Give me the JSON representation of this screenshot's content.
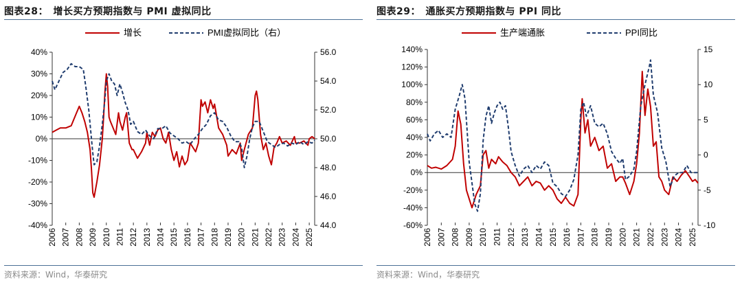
{
  "charts": [
    {
      "fig_title": "图表28：　增长买方预期指数与 PMI 虚拟同比",
      "source": "资料来源：Wind，华泰研究",
      "chart_data": {
        "type": "line",
        "x_unit": "year",
        "xlim": [
          2006,
          2025.4
        ],
        "x_ticks": [
          "2006",
          "2007",
          "2008",
          "2009",
          "2010",
          "2011",
          "2012",
          "2013",
          "2014",
          "2015",
          "2016",
          "2017",
          "2018",
          "2019",
          "2020",
          "2021",
          "2022",
          "2023",
          "2024",
          "2025"
        ],
        "y_left": {
          "lim": [
            -40,
            40
          ],
          "ticks": [
            -40,
            -30,
            -20,
            -10,
            0,
            10,
            20,
            30,
            40
          ],
          "tick_labels": [
            "-40%",
            "-30%",
            "-20%",
            "-10%",
            "0%",
            "10%",
            "20%",
            "30%",
            "40%"
          ]
        },
        "y_right": {
          "lim": [
            44,
            56
          ],
          "ticks": [
            44,
            46,
            48,
            50,
            52,
            54,
            56
          ],
          "tick_labels": [
            "44.0",
            "46.0",
            "48.0",
            "50.0",
            "52.0",
            "54.0",
            "56.0"
          ]
        },
        "grid": false,
        "legend": "top",
        "series": [
          {
            "name": "增长",
            "axis": "left",
            "color": "#c00000",
            "style": "solid",
            "x": [
              2006.0,
              2006.3,
              2006.6,
              2007.0,
              2007.4,
              2007.8,
              2008.0,
              2008.2,
              2008.4,
              2008.6,
              2008.8,
              2008.9,
              2009.0,
              2009.1,
              2009.3,
              2009.5,
              2009.7,
              2009.8,
              2009.9,
              2010.0,
              2010.1,
              2010.2,
              2010.3,
              2010.5,
              2010.7,
              2010.9,
              2011.0,
              2011.2,
              2011.4,
              2011.5,
              2011.7,
              2011.9,
              2012.0,
              2012.3,
              2012.6,
              2012.9,
              2013.0,
              2013.2,
              2013.4,
              2013.6,
              2013.8,
              2014.0,
              2014.2,
              2014.4,
              2014.6,
              2014.8,
              2015.0,
              2015.2,
              2015.4,
              2015.6,
              2015.8,
              2016.0,
              2016.2,
              2016.4,
              2016.6,
              2016.8,
              2017.0,
              2017.1,
              2017.3,
              2017.5,
              2017.7,
              2017.9,
              2018.0,
              2018.3,
              2018.6,
              2018.9,
              2019.0,
              2019.3,
              2019.6,
              2019.9,
              2020.0,
              2020.2,
              2020.5,
              2020.8,
              2021.0,
              2021.1,
              2021.2,
              2021.4,
              2021.6,
              2021.8,
              2022.0,
              2022.2,
              2022.4,
              2022.6,
              2022.8,
              2023.0,
              2023.3,
              2023.6,
              2023.9,
              2024.0,
              2024.3,
              2024.6,
              2024.9,
              2025.0,
              2025.2,
              2025.4
            ],
            "y": [
              3,
              4,
              5,
              5,
              6,
              12,
              15,
              12,
              8,
              3,
              -5,
              -14,
              -25,
              -27,
              -20,
              -12,
              0,
              10,
              22,
              30,
              24,
              10,
              8,
              5,
              2,
              12,
              8,
              4,
              10,
              12,
              -2,
              -5,
              -5,
              -9,
              -6,
              -2,
              3,
              -3,
              3,
              1,
              4,
              5,
              0,
              -2,
              3,
              -5,
              -10,
              -6,
              -13,
              -8,
              -12,
              -10,
              -2,
              -4,
              -6,
              -2,
              18,
              15,
              17,
              12,
              18,
              14,
              16,
              5,
              2,
              -3,
              -8,
              -5,
              -7,
              -2,
              -10,
              -5,
              2,
              5,
              20,
              22,
              18,
              2,
              -5,
              -2,
              -8,
              -12,
              -4,
              -2,
              1,
              -2,
              -1,
              -3,
              1,
              -2,
              -2,
              -1,
              -3,
              0,
              1,
              0
            ]
          },
          {
            "name": "PMI虚拟同比（右）",
            "axis": "right",
            "color": "#1f3c6e",
            "style": "dashed",
            "x": [
              2006.0,
              2006.2,
              2006.5,
              2006.8,
              2007.1,
              2007.4,
              2007.7,
              2008.0,
              2008.3,
              2008.5,
              2008.7,
              2008.9,
              2009.0,
              2009.1,
              2009.3,
              2009.5,
              2009.7,
              2009.9,
              2010.0,
              2010.2,
              2010.4,
              2010.6,
              2010.8,
              2011.0,
              2011.2,
              2011.4,
              2011.6,
              2011.8,
              2012.0,
              2012.3,
              2012.6,
              2012.9,
              2013.2,
              2013.5,
              2013.8,
              2014.1,
              2014.4,
              2014.7,
              2015.0,
              2015.3,
              2015.6,
              2015.9,
              2016.2,
              2016.5,
              2016.8,
              2017.1,
              2017.4,
              2017.7,
              2018.0,
              2018.3,
              2018.6,
              2018.9,
              2019.2,
              2019.5,
              2019.8,
              2020.0,
              2020.2,
              2020.4,
              2020.6,
              2020.8,
              2021.0,
              2021.3,
              2021.6,
              2021.9,
              2022.2,
              2022.5,
              2022.8,
              2023.1,
              2023.4,
              2023.7,
              2024.0,
              2024.3,
              2024.6,
              2024.9,
              2025.2,
              2025.4
            ],
            "y": [
              54.0,
              53.4,
              54.0,
              54.6,
              54.8,
              55.2,
              55.0,
              55.0,
              54.8,
              53.5,
              52.0,
              50.0,
              49.0,
              48.2,
              48.4,
              49.5,
              51.0,
              52.8,
              54.0,
              54.5,
              54.0,
              53.8,
              53.0,
              53.8,
              53.2,
              52.5,
              52.0,
              51.0,
              51.2,
              50.5,
              50.3,
              50.6,
              50.2,
              50.0,
              50.7,
              50.7,
              50.9,
              50.4,
              50.2,
              50.0,
              49.7,
              49.8,
              49.6,
              50.0,
              50.3,
              50.7,
              51.0,
              51.6,
              51.8,
              51.3,
              51.2,
              50.8,
              50.2,
              49.8,
              49.8,
              49.4,
              48.0,
              48.8,
              50.0,
              50.8,
              51.2,
              51.2,
              50.5,
              49.8,
              49.6,
              49.4,
              49.6,
              49.7,
              49.5,
              49.7,
              49.6,
              49.8,
              49.6,
              49.8,
              49.7,
              49.9
            ]
          }
        ]
      }
    },
    {
      "fig_title": "图表29：　通胀买方预期指数与 PPI 同比",
      "source": "资料来源：Wind，华泰研究",
      "chart_data": {
        "type": "line",
        "x_unit": "year",
        "xlim": [
          2006,
          2025.4
        ],
        "x_ticks": [
          "2006",
          "2007",
          "2008",
          "2009",
          "2010",
          "2011",
          "2012",
          "2013",
          "2014",
          "2015",
          "2016",
          "2017",
          "2018",
          "2019",
          "2020",
          "2021",
          "2022",
          "2023",
          "2024",
          "2025"
        ],
        "y_left": {
          "lim": [
            -60,
            140
          ],
          "ticks": [
            -60,
            -40,
            -20,
            0,
            20,
            40,
            60,
            80,
            100,
            120,
            140
          ],
          "tick_labels": [
            "-60%",
            "-40%",
            "-20%",
            "0%",
            "20%",
            "40%",
            "60%",
            "80%",
            "100%",
            "120%",
            "140%"
          ]
        },
        "y_right": {
          "lim": [
            -10,
            15
          ],
          "ticks": [
            -10,
            -5,
            0,
            5,
            10,
            15
          ],
          "tick_labels": [
            "-10",
            "-5",
            "0",
            "5",
            "10",
            "15"
          ]
        },
        "grid": false,
        "legend": "top",
        "series": [
          {
            "name": "生产端通胀",
            "axis": "left",
            "color": "#c00000",
            "style": "solid",
            "x": [
              2006.0,
              2006.3,
              2006.6,
              2007.0,
              2007.4,
              2007.8,
              2008.0,
              2008.2,
              2008.4,
              2008.6,
              2008.8,
              2009.0,
              2009.2,
              2009.5,
              2009.8,
              2010.0,
              2010.2,
              2010.4,
              2010.6,
              2010.9,
              2011.1,
              2011.4,
              2011.7,
              2012.0,
              2012.3,
              2012.6,
              2012.9,
              2013.2,
              2013.5,
              2013.8,
              2014.1,
              2014.4,
              2014.7,
              2015.0,
              2015.3,
              2015.6,
              2015.9,
              2016.2,
              2016.5,
              2016.8,
              2017.0,
              2017.1,
              2017.3,
              2017.5,
              2017.7,
              2018.0,
              2018.3,
              2018.6,
              2018.9,
              2019.2,
              2019.5,
              2019.8,
              2020.0,
              2020.2,
              2020.5,
              2020.8,
              2021.0,
              2021.2,
              2021.4,
              2021.6,
              2021.8,
              2022.0,
              2022.2,
              2022.4,
              2022.6,
              2022.8,
              2023.0,
              2023.3,
              2023.6,
              2023.9,
              2024.2,
              2024.5,
              2024.8,
              2025.0,
              2025.2,
              2025.4
            ],
            "y": [
              8,
              5,
              6,
              4,
              8,
              15,
              30,
              70,
              55,
              10,
              -20,
              -30,
              -40,
              -25,
              -15,
              20,
              25,
              5,
              15,
              10,
              18,
              12,
              8,
              0,
              -5,
              -15,
              -10,
              -5,
              -15,
              -10,
              -12,
              -20,
              -15,
              -20,
              -30,
              -35,
              -28,
              -35,
              -38,
              -25,
              60,
              84,
              45,
              60,
              30,
              40,
              25,
              30,
              5,
              10,
              -10,
              -5,
              -5,
              -12,
              -25,
              -10,
              10,
              45,
              115,
              65,
              95,
              75,
              30,
              35,
              -5,
              -10,
              -20,
              -25,
              -5,
              -10,
              -3,
              2,
              -5,
              -10,
              -8,
              -12
            ]
          },
          {
            "name": "PPI同比",
            "axis": "right",
            "color": "#1f3c6e",
            "style": "dashed",
            "x": [
              2006.0,
              2006.2,
              2006.5,
              2006.8,
              2007.1,
              2007.4,
              2007.7,
              2008.0,
              2008.3,
              2008.5,
              2008.7,
              2008.9,
              2009.0,
              2009.2,
              2009.4,
              2009.6,
              2009.8,
              2010.0,
              2010.2,
              2010.4,
              2010.6,
              2010.8,
              2011.0,
              2011.2,
              2011.4,
              2011.6,
              2011.8,
              2012.0,
              2012.3,
              2012.6,
              2012.9,
              2013.2,
              2013.5,
              2013.8,
              2014.1,
              2014.4,
              2014.7,
              2015.0,
              2015.3,
              2015.6,
              2015.9,
              2016.2,
              2016.5,
              2016.8,
              2017.0,
              2017.2,
              2017.4,
              2017.7,
              2018.0,
              2018.3,
              2018.6,
              2018.9,
              2019.2,
              2019.5,
              2019.8,
              2020.0,
              2020.2,
              2020.5,
              2020.8,
              2021.0,
              2021.3,
              2021.6,
              2021.9,
              2022.0,
              2022.2,
              2022.5,
              2022.8,
              2023.1,
              2023.4,
              2023.7,
              2024.0,
              2024.3,
              2024.6,
              2024.9,
              2025.2,
              2025.4
            ],
            "y": [
              3.0,
              2.0,
              3.0,
              3.5,
              2.5,
              3.0,
              2.5,
              6.5,
              8.5,
              10.0,
              8.0,
              2.0,
              -1.0,
              -4.0,
              -7.0,
              -8.0,
              -5.5,
              2.0,
              5.5,
              7.0,
              4.5,
              6.0,
              7.0,
              7.5,
              6.5,
              7.0,
              4.0,
              0.5,
              -1.5,
              -3.0,
              -2.0,
              -1.5,
              -2.5,
              -1.5,
              -2.0,
              -1.0,
              -1.5,
              -4.0,
              -4.5,
              -5.5,
              -5.9,
              -5.0,
              -3.5,
              0.0,
              6.5,
              7.5,
              5.5,
              7.0,
              4.5,
              4.0,
              4.5,
              3.0,
              0.5,
              -0.5,
              -1.2,
              -0.5,
              -3.5,
              -3.0,
              -2.0,
              0.5,
              7.0,
              10.0,
              12.5,
              13.5,
              8.5,
              6.0,
              1.0,
              -1.0,
              -4.5,
              -3.0,
              -2.5,
              -2.5,
              -1.5,
              -2.5,
              -2.5,
              -2.5
            ]
          }
        ]
      }
    }
  ]
}
